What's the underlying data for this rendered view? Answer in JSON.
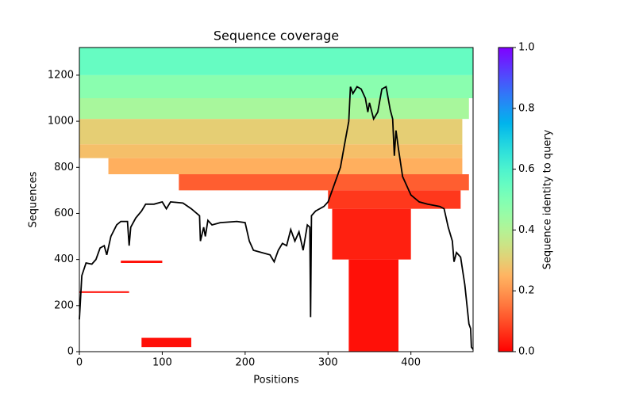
{
  "chart_data": {
    "type": "coverage",
    "title": "Sequence coverage",
    "xlabel": "Positions",
    "ylabel": "Sequences",
    "colorbar_label": "Sequence identity to query",
    "xlim": [
      0,
      475
    ],
    "ylim": [
      0,
      1320
    ],
    "xticks": [
      0,
      100,
      200,
      300,
      400
    ],
    "yticks": [
      0,
      200,
      400,
      600,
      800,
      1000,
      1200
    ],
    "clim": [
      0,
      1
    ],
    "cticks": [
      {
        "value": 0,
        "label": "0.0"
      },
      0.2,
      0.4,
      0.6,
      0.8,
      {
        "value": 1,
        "label": "1.0"
      }
    ],
    "line_color": "#000000",
    "x": [
      0,
      3,
      8,
      15,
      20,
      25,
      30,
      33,
      38,
      45,
      50,
      58,
      60,
      62,
      68,
      75,
      80,
      90,
      100,
      105,
      110,
      125,
      135,
      145,
      146,
      150,
      152,
      155,
      160,
      170,
      190,
      200,
      205,
      210,
      220,
      230,
      235,
      240,
      245,
      250,
      255,
      260,
      265,
      270,
      275,
      278,
      279,
      280,
      285,
      295,
      300,
      305,
      315,
      320,
      325,
      327,
      330,
      335,
      340,
      345,
      348,
      350,
      355,
      360,
      365,
      370,
      375,
      378,
      380,
      382,
      385,
      390,
      400,
      410,
      420,
      435,
      440,
      445,
      450,
      452,
      455,
      460,
      465,
      470,
      472,
      473,
      475
    ],
    "values": [
      140,
      330,
      385,
      380,
      400,
      450,
      460,
      420,
      500,
      550,
      565,
      565,
      460,
      540,
      580,
      610,
      640,
      640,
      650,
      620,
      650,
      645,
      620,
      590,
      480,
      540,
      500,
      570,
      550,
      560,
      565,
      560,
      480,
      440,
      430,
      420,
      390,
      440,
      470,
      460,
      530,
      480,
      520,
      440,
      550,
      540,
      150,
      590,
      610,
      630,
      650,
      700,
      800,
      900,
      1000,
      1150,
      1120,
      1150,
      1140,
      1100,
      1040,
      1080,
      1010,
      1040,
      1140,
      1150,
      1050,
      1010,
      850,
      960,
      880,
      760,
      680,
      650,
      640,
      630,
      620,
      540,
      480,
      390,
      430,
      410,
      290,
      120,
      100,
      20,
      10
    ],
    "bands": [
      {
        "x": [
          0,
          475
        ],
        "y": [
          1200,
          1320
        ],
        "identity": 0.55
      },
      {
        "x": [
          0,
          475
        ],
        "y": [
          1100,
          1200
        ],
        "identity": 0.48
      },
      {
        "x": [
          0,
          470
        ],
        "y": [
          1010,
          1100
        ],
        "identity": 0.42
      },
      {
        "x": [
          0,
          462
        ],
        "y": [
          900,
          1010
        ],
        "identity": 0.3
      },
      {
        "x": [
          0,
          462
        ],
        "y": [
          840,
          900
        ],
        "identity": 0.27
      },
      {
        "x": [
          35,
          462
        ],
        "y": [
          770,
          840
        ],
        "identity": 0.24
      },
      {
        "x": [
          120,
          470
        ],
        "y": [
          700,
          770
        ],
        "identity": 0.12
      },
      {
        "x": [
          300,
          460
        ],
        "y": [
          620,
          700
        ],
        "identity": 0.07
      },
      {
        "x": [
          305,
          400
        ],
        "y": [
          400,
          620
        ],
        "identity": 0.04
      },
      {
        "x": [
          325,
          385
        ],
        "y": [
          0,
          400
        ],
        "identity": 0.02
      },
      {
        "x": [
          50,
          100
        ],
        "y": [
          385,
          395
        ],
        "identity": 0.02
      },
      {
        "x": [
          0,
          60
        ],
        "y": [
          255,
          262
        ],
        "identity": 0.02
      },
      {
        "x": [
          75,
          135
        ],
        "y": [
          20,
          60
        ],
        "identity": 0.02
      }
    ]
  }
}
